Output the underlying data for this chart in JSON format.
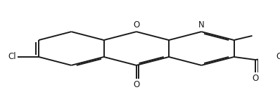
{
  "bg_color": "#ffffff",
  "line_color": "#1a1a1a",
  "line_width": 1.4,
  "dbo": 0.012,
  "font_size": 8.5,
  "figsize": [
    3.98,
    1.38
  ],
  "dpi": 100,
  "xlim": [
    -0.15,
    1.05
  ],
  "ylim": [
    0.0,
    1.0
  ]
}
